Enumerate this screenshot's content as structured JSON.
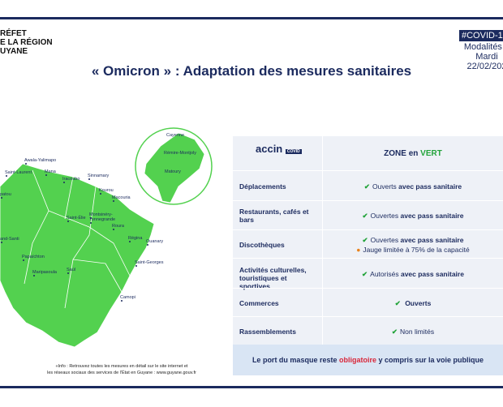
{
  "header": {
    "logo_lines": [
      "RÉFET",
      "E LA RÉGION",
      "UYANE"
    ],
    "badge": "#COVID-1",
    "note_lines": [
      "Modalités a",
      "Mardi",
      "22/02/202"
    ]
  },
  "title": "«  Omicron  » : Adaptation des mesures sanitaires",
  "map": {
    "cities": [
      "Awala-Yalimapo",
      "Mana",
      "Saint-Laurent",
      "patou",
      "Iracoubo",
      "Sinnamary",
      "Kourou",
      "Macouria",
      "Saint-Élie",
      "Montsinéry-",
      "Tonnegrande",
      "Roura",
      "Régina",
      "Ouanary",
      "and-Santi",
      "Papaïchton",
      "Maripasoula",
      "Saül",
      "Saint-Georges",
      "Camopi"
    ],
    "inset_cities": [
      "Cayenne",
      "Rémire-Montjoly",
      "Matoury"
    ]
  },
  "footer_info": [
    "«Info : Retrouvez toutes les mesures en détail sur le site internet et",
    "les réseaux sociaux des services de l'État en Guyane : www.guyane.gouv.fr"
  ],
  "table": {
    "logo": "accin",
    "logo_sub": "COVID",
    "zone_prefix": "ZONE en",
    "zone_color": "VERT",
    "rows": [
      {
        "label": "Déplacements",
        "items": [
          {
            "normal": "Ouverts",
            "bold": "avec pass sanitaire"
          }
        ]
      },
      {
        "label": "Restaurants, cafés et bars",
        "items": [
          {
            "normal": "Ouvertes",
            "bold": "avec pass sanitaire"
          }
        ]
      },
      {
        "label": "Discothèques",
        "items": [
          {
            "normal": "Ouvertes",
            "bold": "avec pass sanitaire"
          },
          {
            "normal": "Jauge limitée à 75% de la capacité",
            "warn": true
          }
        ]
      },
      {
        "label": "Activités culturelles, touristiques et sportives",
        "items": [
          {
            "normal": "Autorisés",
            "bold": "avec pass sanitaire"
          }
        ]
      },
      {
        "label": "Commerces",
        "items": [
          {
            "bold": "Ouverts"
          }
        ]
      },
      {
        "label": "Rassemblements",
        "items": [
          {
            "normal": "Non limités"
          }
        ]
      }
    ],
    "footer": {
      "before": "Le port du masque reste",
      "highlight": "obligatoire",
      "after": "y compris sur la voie publique"
    }
  }
}
